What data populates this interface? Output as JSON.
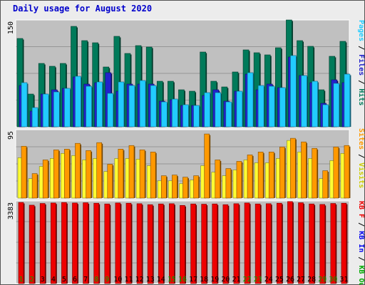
{
  "title": "Daily usage for August 2020",
  "colors": {
    "hits": "#007a5a",
    "files": "#2222cc",
    "pages": "#22ccff",
    "visits": "#ffff33",
    "sites": "#ff9900",
    "kbin": "#0000ee",
    "kbout": "#00aa00",
    "kbf": "#ee0000",
    "weekend": "#00aa00",
    "weekday": "#000000",
    "plot_bg": "#c0c0c0"
  },
  "chart_data": [
    {
      "type": "bar",
      "panel": "hits-files-pages",
      "ymax_label": "150",
      "ylim": [
        0,
        150
      ],
      "grid": true,
      "x": [
        "1",
        "2",
        "3",
        "4",
        "5",
        "6",
        "7",
        "8",
        "9",
        "10",
        "11",
        "12",
        "13",
        "14",
        "15",
        "16",
        "17",
        "18",
        "19",
        "20",
        "21",
        "22",
        "23",
        "24",
        "25",
        "26",
        "27",
        "28",
        "29",
        "30",
        "31"
      ],
      "weekend_days": [
        "1",
        "2",
        "8",
        "9",
        "15",
        "16",
        "22",
        "23",
        "29",
        "30"
      ],
      "series": [
        {
          "name": "Hits",
          "values": [
            124,
            46,
            89,
            85,
            89,
            141,
            121,
            118,
            84,
            127,
            103,
            114,
            112,
            64,
            64,
            52,
            50,
            105,
            64,
            56,
            77,
            108,
            104,
            101,
            111,
            150,
            121,
            113,
            52,
            99,
            120
          ]
        },
        {
          "name": "Files",
          "values": [
            58,
            22,
            46,
            52,
            54,
            70,
            60,
            62,
            76,
            50,
            60,
            60,
            60,
            36,
            38,
            30,
            30,
            44,
            52,
            36,
            50,
            74,
            52,
            60,
            55,
            98,
            72,
            62,
            33,
            66,
            62
          ]
        },
        {
          "name": "Pages",
          "values": [
            62,
            27,
            46,
            49,
            54,
            71,
            57,
            63,
            47,
            63,
            58,
            65,
            58,
            35,
            39,
            31,
            30,
            48,
            48,
            35,
            50,
            76,
            58,
            57,
            55,
            100,
            72,
            64,
            31,
            61,
            74
          ]
        }
      ]
    },
    {
      "type": "bar",
      "panel": "visits-sites",
      "ymax_label": "95",
      "ylim": [
        0,
        95
      ],
      "grid": true,
      "x": [
        "1",
        "2",
        "3",
        "4",
        "5",
        "6",
        "7",
        "8",
        "9",
        "10",
        "11",
        "12",
        "13",
        "14",
        "15",
        "16",
        "17",
        "18",
        "19",
        "20",
        "21",
        "22",
        "23",
        "24",
        "25",
        "26",
        "27",
        "28",
        "29",
        "30",
        "31"
      ],
      "series": [
        {
          "name": "Visits",
          "values": [
            56,
            27,
            44,
            55,
            62,
            59,
            53,
            55,
            37,
            55,
            55,
            54,
            45,
            24,
            24,
            20,
            25,
            45,
            36,
            31,
            39,
            53,
            49,
            49,
            55,
            80,
            64,
            55,
            27,
            52,
            62
          ]
        },
        {
          "name": "Sites",
          "values": [
            72,
            34,
            53,
            67,
            68,
            76,
            66,
            77,
            47,
            68,
            73,
            67,
            64,
            31,
            32,
            29,
            31,
            89,
            53,
            41,
            51,
            60,
            64,
            64,
            71,
            83,
            78,
            69,
            38,
            71,
            73
          ]
        }
      ]
    },
    {
      "type": "bar",
      "panel": "kbytes",
      "ymax_label": "3383",
      "ylim": [
        0,
        3383
      ],
      "grid": true,
      "x": [
        "1",
        "2",
        "3",
        "4",
        "5",
        "6",
        "7",
        "8",
        "9",
        "10",
        "11",
        "12",
        "13",
        "14",
        "15",
        "16",
        "17",
        "18",
        "19",
        "20",
        "21",
        "22",
        "23",
        "24",
        "25",
        "26",
        "27",
        "28",
        "29",
        "30",
        "31"
      ],
      "series": [
        {
          "name": "KB F",
          "values": [
            3323,
            3210,
            3280,
            3300,
            3320,
            3300,
            3310,
            3290,
            3260,
            3300,
            3290,
            3270,
            3230,
            3260,
            3270,
            3200,
            3260,
            3250,
            3260,
            3230,
            3270,
            3300,
            3260,
            3270,
            3290,
            3360,
            3310,
            3260,
            3240,
            3280,
            3290
          ]
        }
      ]
    }
  ],
  "legends": {
    "top": [
      {
        "text": "Pages",
        "color": "#22ccff"
      },
      {
        "text": " / ",
        "color": "#000000"
      },
      {
        "text": "Files",
        "color": "#2222cc"
      },
      {
        "text": " / ",
        "color": "#000000"
      },
      {
        "text": "Hits",
        "color": "#007a5a"
      }
    ],
    "middle": [
      {
        "text": "Sites",
        "color": "#ff9900"
      },
      {
        "text": " / ",
        "color": "#000000"
      },
      {
        "text": "Visits",
        "color": "#cccc00"
      }
    ],
    "bottom": [
      {
        "text": "KB F",
        "color": "#ee0000"
      },
      {
        "text": " / ",
        "color": "#000000"
      },
      {
        "text": "KB In",
        "color": "#0000ee"
      },
      {
        "text": " / ",
        "color": "#000000"
      },
      {
        "text": "KB Out",
        "color": "#00aa00"
      }
    ]
  }
}
